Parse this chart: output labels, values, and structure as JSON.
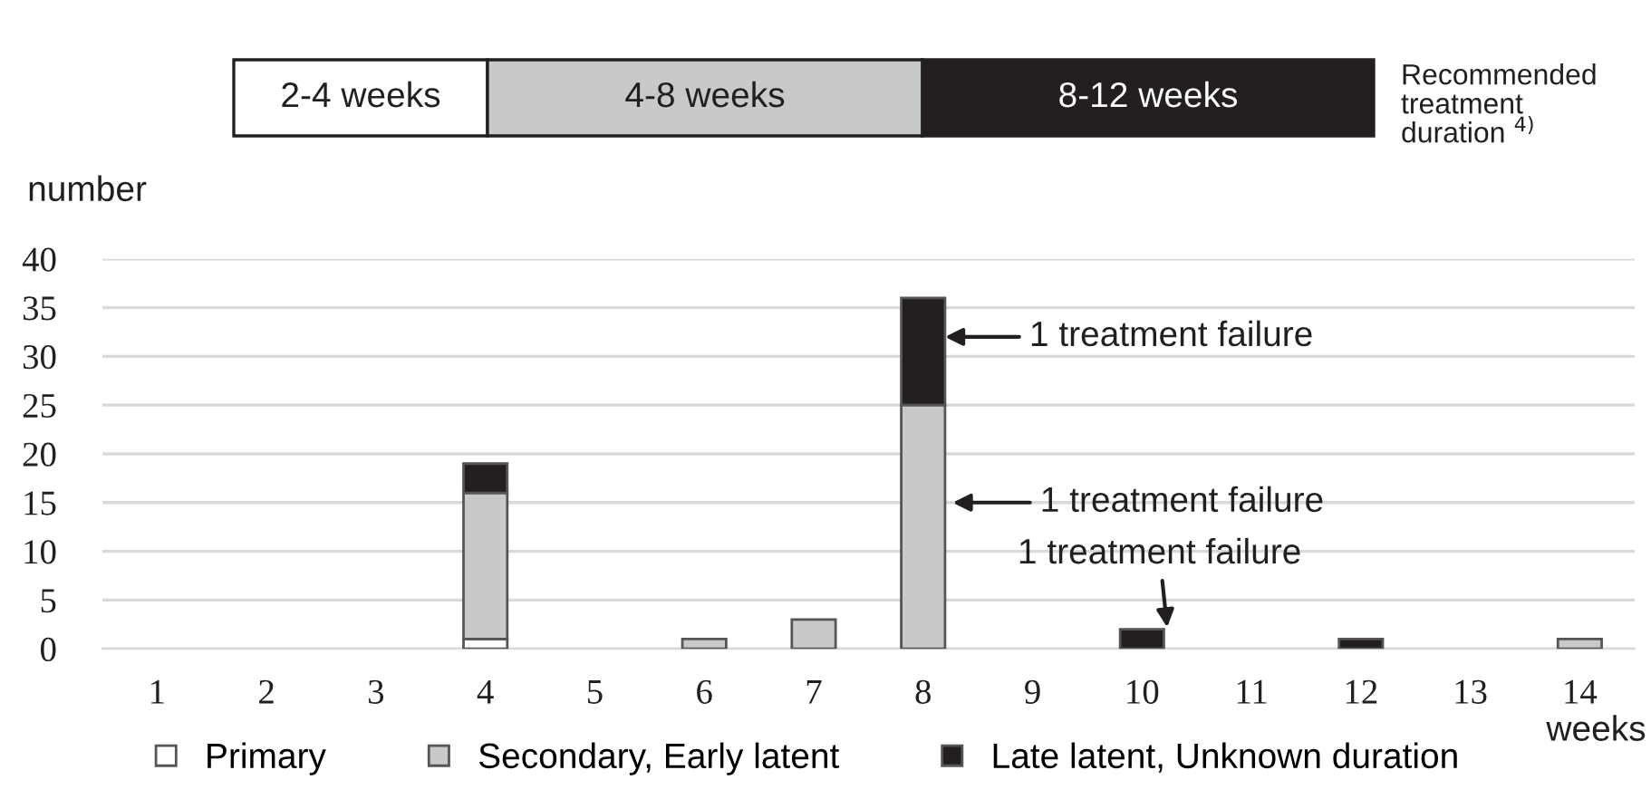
{
  "chart_data": {
    "type": "bar",
    "stacked": true,
    "xlabel": "weeks",
    "ylabel": "number",
    "categories": [
      "1",
      "2",
      "3",
      "4",
      "5",
      "6",
      "7",
      "8",
      "9",
      "10",
      "11",
      "12",
      "13",
      "14"
    ],
    "series": [
      {
        "name": "Primary",
        "color": "#ffffff",
        "values": [
          0,
          0,
          0,
          1,
          0,
          0,
          0,
          0,
          0,
          0,
          0,
          0,
          0,
          0
        ]
      },
      {
        "name": "Secondary, Early latent",
        "color": "#c8c9ca",
        "values": [
          0,
          0,
          0,
          15,
          0,
          1,
          3,
          25,
          0,
          0,
          0,
          0,
          0,
          1
        ]
      },
      {
        "name": "Late latent, Unknown duration",
        "color": "#231f20",
        "values": [
          0,
          0,
          0,
          3,
          0,
          0,
          0,
          11,
          0,
          2,
          0,
          1,
          0,
          0
        ]
      }
    ],
    "ylim": [
      0,
      40
    ],
    "yticks": [
      0,
      5,
      10,
      15,
      20,
      25,
      30,
      35,
      40
    ],
    "grid": "y",
    "legend": "bottom",
    "annotations": [
      "2-4 weeks",
      "4-8 weeks",
      "8-12 weeks",
      "Recommended treatment duration $^{4)}$",
      "1 treatment failure",
      "1 treatment failure",
      "1 treatment failure"
    ]
  }
}
